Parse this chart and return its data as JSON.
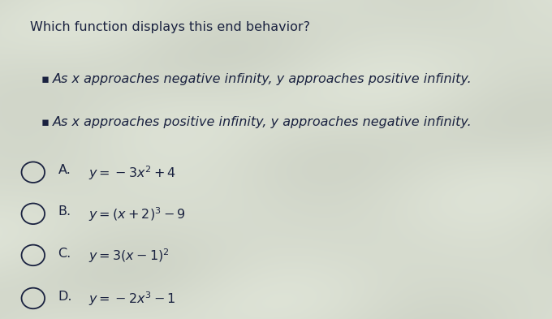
{
  "title": "Which function displays this end behavior?",
  "bullets": [
    "As x approaches negative infinity, y approaches positive infinity.",
    "As x approaches positive infinity, y approaches negative infinity."
  ],
  "options": [
    {
      "label": "A.",
      "formula": "$y = -3x^2 + 4$"
    },
    {
      "label": "B.",
      "formula": "$y = (x + 2)^3 - 9$"
    },
    {
      "label": "C.",
      "formula": "$y = 3(x - 1)^2$"
    },
    {
      "label": "D.",
      "formula": "$y = -2x^3 - 1$"
    }
  ],
  "bg_color_top": "#e8e8e2",
  "bg_color_main": "#d4d8cc",
  "text_color": "#1a2240",
  "title_fontsize": 11.5,
  "bullet_fontsize": 11.5,
  "option_label_fontsize": 11.5,
  "option_formula_fontsize": 11.5,
  "figsize": [
    6.8,
    3.93
  ],
  "dpi": 100
}
